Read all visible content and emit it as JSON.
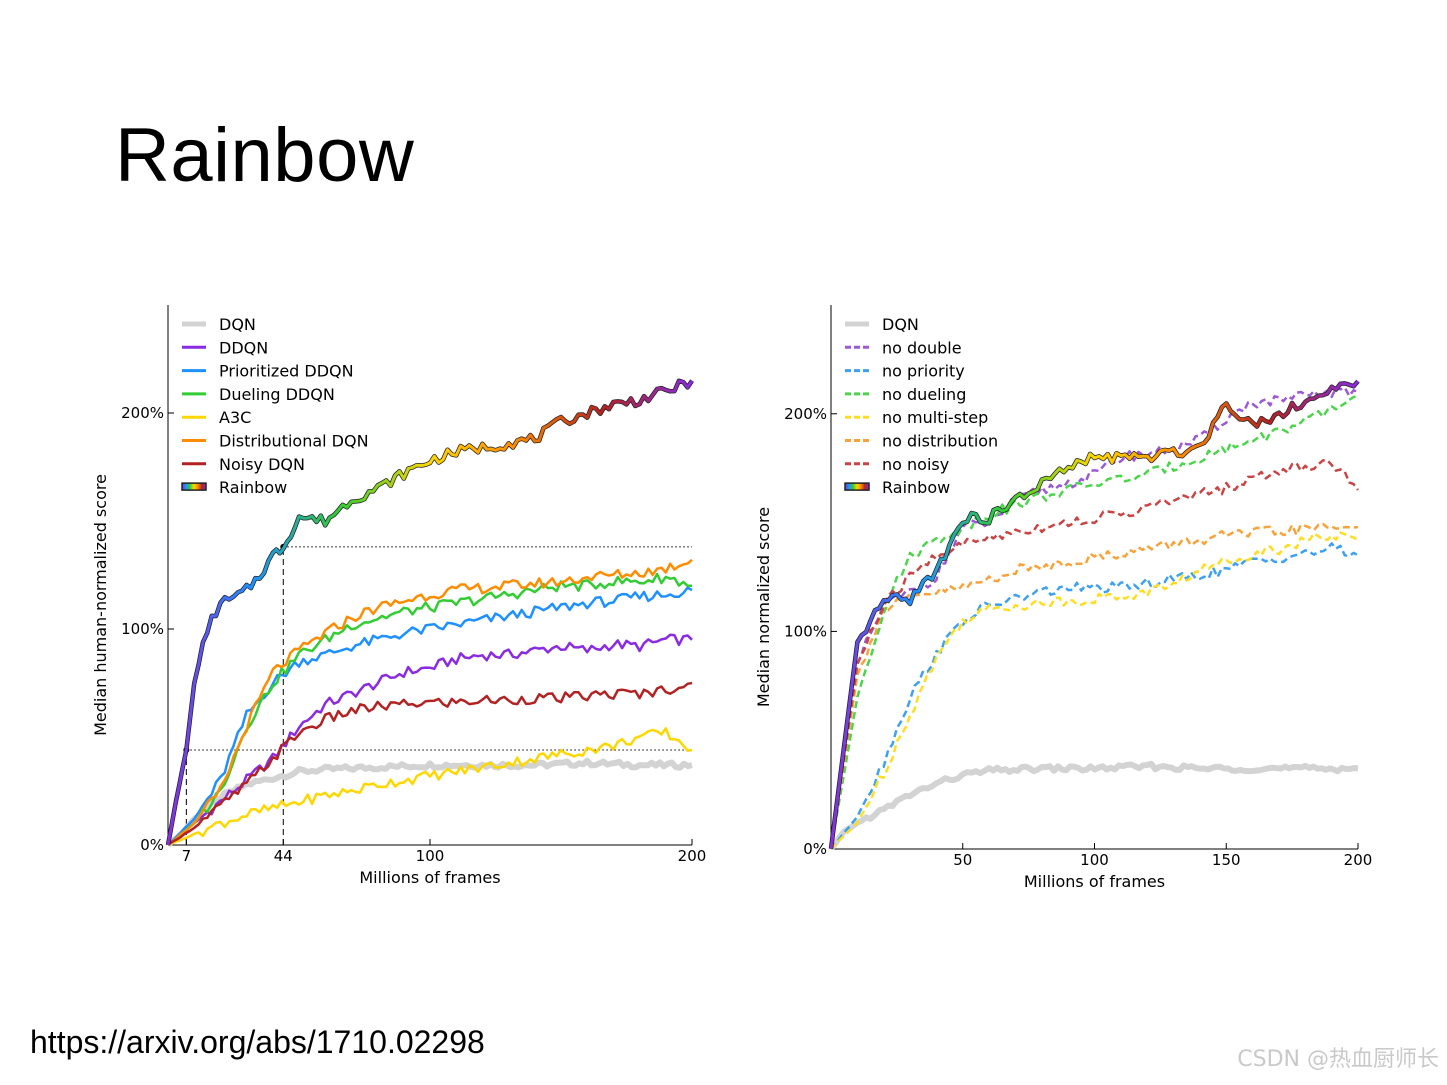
{
  "slide": {
    "title": "Rainbow",
    "link": "https://arxiv.org/abs/1710.02298",
    "watermark": "CSDN @热血厨师长"
  },
  "chart_data": [
    {
      "type": "line",
      "title": "",
      "xlabel": "Millions of frames",
      "ylabel": "Median human-normalized score",
      "xlim": [
        0,
        200
      ],
      "ylim": [
        0,
        250
      ],
      "x_ticks": [
        7,
        44,
        100,
        200
      ],
      "x_tick_labels": [
        "7",
        "44",
        "100",
        "200"
      ],
      "y_ticks": [
        0,
        100,
        200
      ],
      "y_tick_labels": [
        "0%",
        "100%",
        "200%"
      ],
      "legend_position": "top-left",
      "reference_lines": [
        {
          "kind": "horizontal-dotted",
          "y": 44,
          "x_from": 7,
          "x_to": 200
        },
        {
          "kind": "horizontal-dotted",
          "y": 138,
          "x_from": 44,
          "x_to": 200
        },
        {
          "kind": "vertical-dashed",
          "x": 7,
          "y_to": 44
        },
        {
          "kind": "vertical-dashed",
          "x": 44,
          "y_to": 138
        }
      ],
      "series": [
        {
          "name": "DQN",
          "color": "#d3d3d3",
          "dash": false,
          "width": 6,
          "x": [
            0,
            5,
            10,
            20,
            30,
            40,
            50,
            60,
            80,
            100,
            120,
            140,
            160,
            180,
            200
          ],
          "y": [
            0,
            5,
            12,
            22,
            28,
            31,
            34,
            35,
            36,
            37,
            37,
            37,
            38,
            37,
            37
          ]
        },
        {
          "name": "DDQN",
          "color": "#8a2be2",
          "dash": false,
          "width": 2.5,
          "x": [
            0,
            10,
            20,
            30,
            40,
            50,
            60,
            70,
            80,
            90,
            100,
            110,
            120,
            130,
            140,
            150,
            160,
            170,
            180,
            190,
            200
          ],
          "y": [
            0,
            10,
            20,
            30,
            40,
            55,
            65,
            70,
            75,
            80,
            82,
            86,
            88,
            88,
            90,
            92,
            90,
            93,
            92,
            95,
            95
          ]
        },
        {
          "name": "Prioritized DDQN",
          "color": "#1e90ff",
          "dash": false,
          "width": 2.5,
          "x": [
            0,
            10,
            20,
            30,
            40,
            50,
            60,
            70,
            80,
            90,
            100,
            110,
            120,
            130,
            140,
            150,
            160,
            170,
            180,
            190,
            200
          ],
          "y": [
            0,
            12,
            30,
            60,
            75,
            85,
            88,
            92,
            95,
            98,
            100,
            102,
            104,
            106,
            108,
            110,
            112,
            113,
            115,
            116,
            118
          ]
        },
        {
          "name": "Dueling DDQN",
          "color": "#32cd32",
          "dash": false,
          "width": 2.5,
          "x": [
            0,
            10,
            20,
            30,
            40,
            50,
            60,
            70,
            80,
            90,
            100,
            110,
            120,
            130,
            140,
            150,
            160,
            170,
            180,
            190,
            200
          ],
          "y": [
            0,
            10,
            25,
            55,
            75,
            88,
            95,
            102,
            105,
            108,
            110,
            112,
            114,
            116,
            118,
            120,
            120,
            122,
            122,
            124,
            120
          ]
        },
        {
          "name": "A3C",
          "color": "#ffd700",
          "dash": false,
          "width": 2.5,
          "x": [
            0,
            10,
            20,
            30,
            40,
            50,
            60,
            70,
            80,
            90,
            100,
            110,
            120,
            130,
            140,
            150,
            160,
            170,
            180,
            190,
            200
          ],
          "y": [
            0,
            5,
            10,
            14,
            17,
            20,
            23,
            25,
            28,
            30,
            32,
            34,
            36,
            38,
            40,
            42,
            44,
            46,
            50,
            52,
            44
          ]
        },
        {
          "name": "Distributional DQN",
          "color": "#ff8c00",
          "dash": false,
          "width": 2.5,
          "x": [
            0,
            10,
            20,
            30,
            40,
            50,
            60,
            70,
            80,
            90,
            100,
            110,
            120,
            130,
            140,
            150,
            160,
            170,
            180,
            190,
            200
          ],
          "y": [
            0,
            10,
            25,
            55,
            80,
            90,
            98,
            105,
            110,
            113,
            116,
            118,
            119,
            120,
            121,
            122,
            124,
            125,
            126,
            128,
            132
          ]
        },
        {
          "name": "Noisy DQN",
          "color": "#b22222",
          "dash": false,
          "width": 2.5,
          "x": [
            0,
            10,
            20,
            30,
            40,
            50,
            60,
            70,
            80,
            90,
            100,
            110,
            120,
            130,
            140,
            150,
            160,
            170,
            180,
            190,
            200
          ],
          "y": [
            0,
            8,
            18,
            28,
            40,
            52,
            58,
            62,
            64,
            65,
            66,
            66,
            67,
            67,
            68,
            68,
            69,
            70,
            70,
            72,
            75
          ]
        },
        {
          "name": "Rainbow",
          "color": "rainbow",
          "dash": false,
          "width": 3,
          "x": [
            0,
            3,
            7,
            10,
            15,
            20,
            25,
            30,
            35,
            40,
            44,
            50,
            60,
            70,
            80,
            90,
            100,
            110,
            120,
            130,
            140,
            150,
            160,
            170,
            180,
            190,
            200
          ],
          "y": [
            0,
            20,
            44,
            75,
            100,
            112,
            114,
            118,
            125,
            134,
            138,
            152,
            150,
            160,
            165,
            172,
            178,
            182,
            184,
            186,
            188,
            196,
            200,
            204,
            206,
            210,
            215
          ]
        }
      ]
    },
    {
      "type": "line",
      "title": "",
      "xlabel": "Millions of frames",
      "ylabel": "Median normalized score",
      "xlim": [
        0,
        200
      ],
      "ylim": [
        0,
        250
      ],
      "x_ticks": [
        50,
        100,
        150,
        200
      ],
      "x_tick_labels": [
        "50",
        "100",
        "150",
        "200"
      ],
      "y_ticks": [
        0,
        100,
        200
      ],
      "y_tick_labels": [
        "0%",
        "100%",
        "200%"
      ],
      "legend_position": "top-left",
      "series": [
        {
          "name": "DQN",
          "color": "#d3d3d3",
          "dash": false,
          "width": 6,
          "x": [
            0,
            5,
            10,
            20,
            30,
            40,
            50,
            60,
            80,
            100,
            120,
            140,
            160,
            180,
            200
          ],
          "y": [
            0,
            8,
            12,
            18,
            25,
            30,
            34,
            36,
            37,
            37,
            38,
            37,
            37,
            37,
            37
          ]
        },
        {
          "name": "no double",
          "color": "#9b59d6",
          "dash": true,
          "width": 2.5,
          "x": [
            0,
            10,
            20,
            30,
            40,
            50,
            60,
            70,
            80,
            90,
            100,
            110,
            120,
            130,
            140,
            150,
            160,
            170,
            180,
            190,
            200
          ],
          "y": [
            0,
            85,
            112,
            118,
            125,
            148,
            150,
            160,
            165,
            168,
            172,
            180,
            182,
            184,
            188,
            198,
            205,
            206,
            208,
            210,
            210
          ]
        },
        {
          "name": "no priority",
          "color": "#3ea1f0",
          "dash": true,
          "width": 2.5,
          "x": [
            0,
            10,
            20,
            30,
            40,
            50,
            60,
            70,
            80,
            90,
            100,
            110,
            120,
            130,
            140,
            150,
            160,
            170,
            180,
            190,
            200
          ],
          "y": [
            0,
            15,
            40,
            70,
            90,
            105,
            112,
            115,
            118,
            120,
            120,
            120,
            122,
            124,
            126,
            128,
            132,
            134,
            136,
            138,
            135
          ]
        },
        {
          "name": "no dueling",
          "color": "#4cd44c",
          "dash": true,
          "width": 2.5,
          "x": [
            0,
            10,
            20,
            30,
            40,
            50,
            60,
            70,
            80,
            90,
            100,
            110,
            120,
            130,
            140,
            150,
            160,
            170,
            180,
            190,
            200
          ],
          "y": [
            0,
            70,
            110,
            135,
            142,
            148,
            154,
            158,
            162,
            165,
            168,
            170,
            172,
            176,
            180,
            184,
            188,
            192,
            196,
            202,
            208
          ]
        },
        {
          "name": "no multi-step",
          "color": "#ffdd22",
          "dash": true,
          "width": 2.5,
          "x": [
            0,
            10,
            20,
            30,
            40,
            50,
            60,
            70,
            80,
            90,
            100,
            110,
            120,
            130,
            140,
            150,
            160,
            170,
            180,
            190,
            200
          ],
          "y": [
            0,
            12,
            35,
            62,
            88,
            105,
            110,
            112,
            113,
            114,
            115,
            116,
            118,
            122,
            128,
            132,
            136,
            138,
            142,
            144,
            142
          ]
        },
        {
          "name": "no distribution",
          "color": "#f7a33a",
          "dash": true,
          "width": 2.5,
          "x": [
            0,
            10,
            20,
            30,
            40,
            50,
            60,
            70,
            80,
            90,
            100,
            110,
            120,
            130,
            140,
            150,
            160,
            170,
            180,
            190,
            200
          ],
          "y": [
            0,
            80,
            110,
            115,
            118,
            120,
            124,
            128,
            130,
            132,
            134,
            136,
            138,
            140,
            142,
            144,
            145,
            146,
            147,
            148,
            148
          ]
        },
        {
          "name": "no noisy",
          "color": "#c94444",
          "dash": true,
          "width": 2.5,
          "x": [
            0,
            10,
            20,
            30,
            40,
            50,
            60,
            70,
            80,
            90,
            100,
            110,
            120,
            130,
            140,
            150,
            160,
            170,
            180,
            190,
            200
          ],
          "y": [
            0,
            85,
            112,
            125,
            135,
            140,
            143,
            146,
            148,
            150,
            152,
            154,
            157,
            160,
            163,
            166,
            170,
            174,
            176,
            178,
            165
          ]
        },
        {
          "name": "Rainbow",
          "color": "rainbow",
          "dash": false,
          "width": 3,
          "x": [
            0,
            10,
            20,
            30,
            40,
            50,
            60,
            70,
            80,
            90,
            100,
            110,
            120,
            130,
            140,
            150,
            160,
            170,
            180,
            190,
            200
          ],
          "y": [
            0,
            95,
            114,
            115,
            128,
            152,
            152,
            160,
            168,
            175,
            180,
            180,
            180,
            182,
            185,
            205,
            195,
            200,
            206,
            210,
            215
          ]
        }
      ]
    }
  ]
}
